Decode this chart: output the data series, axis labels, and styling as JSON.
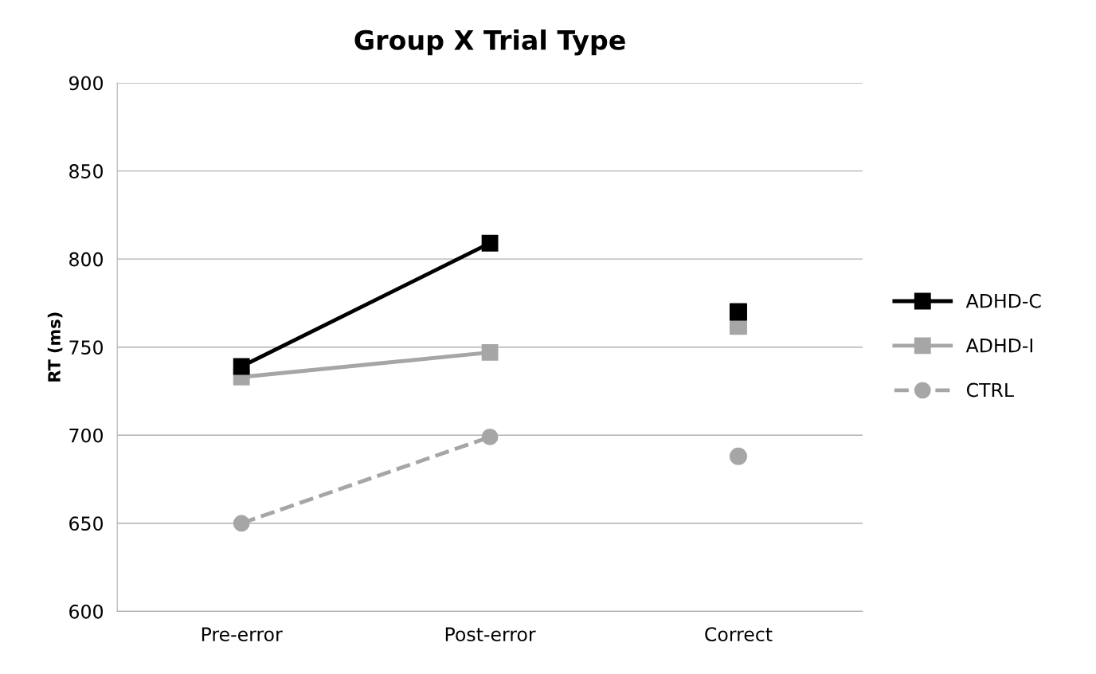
{
  "chart_data": {
    "type": "line",
    "title": "Group X Trial Type",
    "ylabel": "RT (ms)",
    "categories": [
      "Pre-error",
      "Post-error",
      "Correct"
    ],
    "series": [
      {
        "name": "ADHD-C",
        "color": "#000000",
        "values": [
          739,
          809,
          null
        ],
        "marker": "square",
        "line_style": "solid"
      },
      {
        "name": "ADHD-I",
        "color": "#a6a6a6",
        "values": [
          733,
          747,
          null
        ],
        "marker": "square",
        "line_style": "solid"
      },
      {
        "name": "CTRL",
        "color": "#a6a6a6",
        "values": [
          650,
          699,
          null
        ],
        "marker": "circle",
        "line_style": "dashed"
      },
      {
        "type": "scatter",
        "color": "#000000",
        "values": [
          null,
          null,
          770
        ],
        "marker": "square"
      },
      {
        "type": "scatter",
        "color": "#a6a6a6",
        "values": [
          null,
          null,
          762
        ],
        "marker": "square"
      },
      {
        "type": "scatter",
        "color": "#a6a6a6",
        "values": [
          null,
          null,
          688
        ],
        "marker": "circle"
      }
    ],
    "ylim": [
      600,
      900
    ],
    "yticks": [
      600,
      650,
      700,
      750,
      800,
      850,
      900
    ],
    "grid": "y",
    "legend": "right"
  }
}
